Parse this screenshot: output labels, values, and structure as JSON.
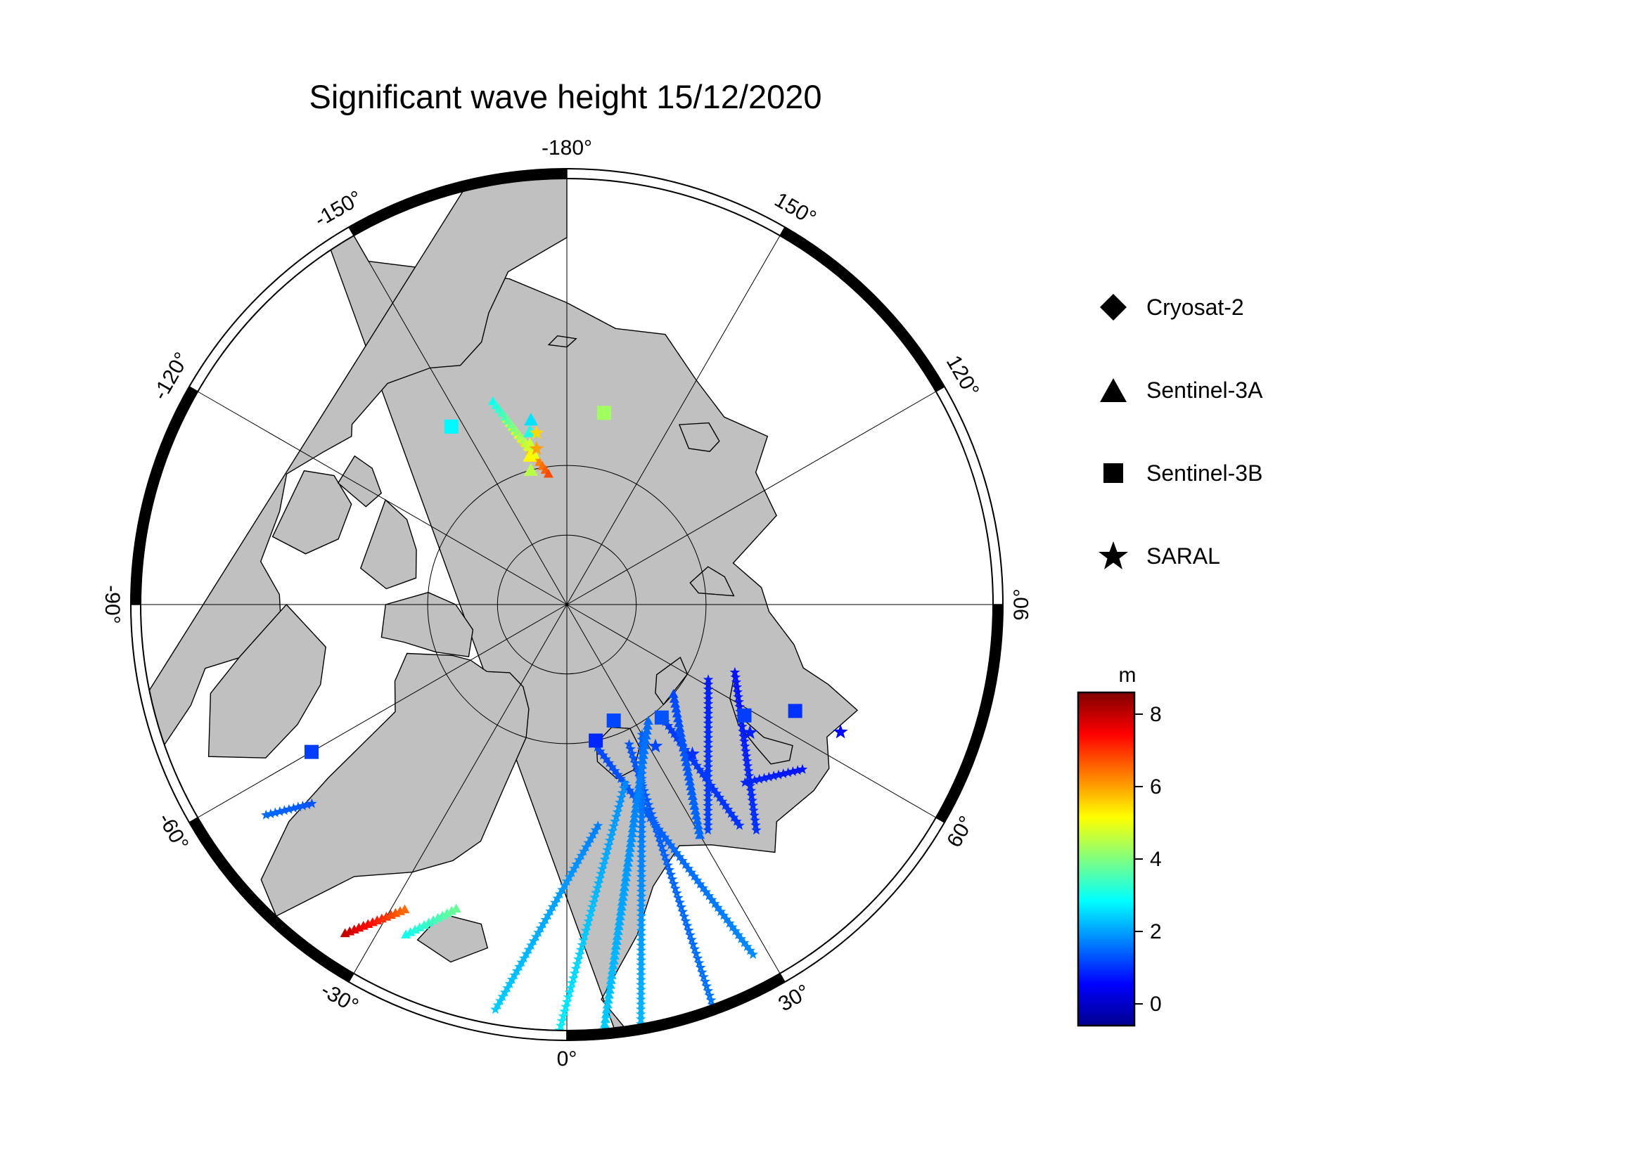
{
  "title": "Significant wave height 15/12/2020",
  "map": {
    "projection": "north-polar-stereographic",
    "land_color": "#c0c0c0",
    "ocean_color": "#ffffff",
    "frame_labels": [
      {
        "label": "-180°",
        "lon": 180
      },
      {
        "label": "150°",
        "lon": 150
      },
      {
        "label": "120°",
        "lon": 120
      },
      {
        "label": "90°",
        "lon": 90
      },
      {
        "label": "60°",
        "lon": 60
      },
      {
        "label": "30°",
        "lon": 30
      },
      {
        "label": "0°",
        "lon": 0
      },
      {
        "label": "-30°",
        "lon": -30
      },
      {
        "label": "-60°",
        "lon": -60
      },
      {
        "label": "-90°",
        "lon": -90
      },
      {
        "label": "-120°",
        "lon": -120
      },
      {
        "label": "-150°",
        "lon": -150
      }
    ],
    "latitude_circles": [
      80,
      85
    ]
  },
  "legend": {
    "items": [
      {
        "label": "Cryosat-2",
        "marker": "diamond-icon"
      },
      {
        "label": "Sentinel-3A",
        "marker": "triangle-icon"
      },
      {
        "label": "Sentinel-3B",
        "marker": "square-icon"
      },
      {
        "label": "SARAL",
        "marker": "star-icon"
      }
    ]
  },
  "colorbar": {
    "unit": "m",
    "ticks": [
      "8",
      "6",
      "4",
      "2",
      "0"
    ],
    "range": [
      -0.6,
      8.6
    ],
    "colormap": [
      "#00008f",
      "#0000ff",
      "#0080ff",
      "#00ffff",
      "#80ff80",
      "#ffff00",
      "#ff8000",
      "#ff0000",
      "#800000"
    ]
  },
  "chart_data": {
    "type": "scatter",
    "title": "Significant wave height 15/12/2020",
    "value_unit": "m",
    "series": [
      {
        "name": "Sentinel-3A",
        "marker": "triangle",
        "points": [
          {
            "lon": -165,
            "lat": 80.0,
            "swh": 4.5
          },
          {
            "lon": -166,
            "lat": 79.0,
            "swh": 5.2
          },
          {
            "lon": -167,
            "lat": 78.2,
            "swh": 4.7
          },
          {
            "lon": -168,
            "lat": 77.3,
            "swh": 3.1
          },
          {
            "lon": -169,
            "lat": 76.5,
            "swh": 2.6
          }
        ]
      },
      {
        "name": "Sentinel-3B",
        "marker": "square",
        "points": [
          {
            "lon": -147,
            "lat": 74.8,
            "swh": 2.8
          },
          {
            "lon": 169,
            "lat": 76.0,
            "swh": 4.3
          },
          {
            "lon": -60,
            "lat": 69.0,
            "swh": 1.1
          },
          {
            "lon": 12,
            "lat": 80.0,
            "swh": 0.9
          },
          {
            "lon": 22,
            "lat": 81.0,
            "swh": 1.2
          },
          {
            "lon": 40,
            "lat": 79.4,
            "swh": 1.3
          },
          {
            "lon": 58,
            "lat": 75.0,
            "swh": 1.1
          },
          {
            "lon": 65,
            "lat": 72.0,
            "swh": 1.0
          }
        ]
      },
      {
        "name": "SARAL",
        "marker": "star",
        "points": [
          {
            "lon": -169,
            "lat": 78.6,
            "swh": 6.0
          },
          {
            "lon": -170,
            "lat": 77.5,
            "swh": 5.5
          },
          {
            "lon": 32,
            "lat": 78.0,
            "swh": 1.2
          },
          {
            "lon": 40,
            "lat": 76.0,
            "swh": 1.0
          },
          {
            "lon": 55,
            "lat": 74.0,
            "swh": 0.8
          },
          {
            "lon": 65,
            "lat": 68.5,
            "swh": 0.6
          }
        ]
      }
    ]
  }
}
